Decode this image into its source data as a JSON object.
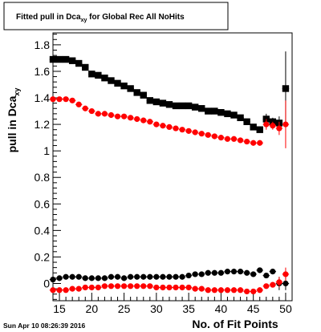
{
  "chart_data": {
    "type": "scatter",
    "title": {
      "main": "Fitted pull in Dca",
      "sub": "xy",
      "rest": " for Global Rec All NoHits"
    },
    "ylabel": {
      "main": "pull in Dca",
      "sub": "xy"
    },
    "xlabel": "No. of Fit Points",
    "timestamp": "Sun Apr 10 08:26:39 2016",
    "xlim": [
      14,
      51
    ],
    "ylim": [
      -0.13,
      1.89
    ],
    "xticks": [
      15,
      20,
      25,
      30,
      35,
      40,
      45,
      50
    ],
    "yticks": [
      0,
      0.2,
      0.4,
      0.6,
      0.8,
      1,
      1.2,
      1.4,
      1.6,
      1.8
    ],
    "ytick_labels": [
      "0",
      "0.2",
      "0.4",
      "0.6",
      "0.8",
      "1",
      "1.2",
      "1.4",
      "1.6",
      "1.8"
    ],
    "grid": false,
    "series": [
      {
        "color": "#000000",
        "marker": "square",
        "x": [
          14,
          15,
          16,
          17,
          18,
          19,
          20,
          21,
          22,
          23,
          24,
          25,
          26,
          27,
          28,
          29,
          30,
          31,
          32,
          33,
          34,
          35,
          36,
          37,
          38,
          39,
          40,
          41,
          42,
          43,
          44,
          45,
          46,
          47,
          48,
          49,
          50
        ],
        "y": [
          1.69,
          1.69,
          1.69,
          1.68,
          1.66,
          1.63,
          1.58,
          1.57,
          1.55,
          1.53,
          1.51,
          1.49,
          1.47,
          1.44,
          1.42,
          1.38,
          1.37,
          1.36,
          1.35,
          1.34,
          1.34,
          1.34,
          1.33,
          1.32,
          1.3,
          1.3,
          1.29,
          1.28,
          1.27,
          1.25,
          1.22,
          1.18,
          1.16,
          1.24,
          1.22,
          1.21,
          1.47
        ],
        "err": [
          0.01,
          0.01,
          0.01,
          0.01,
          0.01,
          0.01,
          0.01,
          0.01,
          0.01,
          0.01,
          0.01,
          0.01,
          0.01,
          0.01,
          0.01,
          0.01,
          0.01,
          0.01,
          0.01,
          0.01,
          0.01,
          0.01,
          0.01,
          0.01,
          0.01,
          0.01,
          0.01,
          0.01,
          0.01,
          0.01,
          0.01,
          0.02,
          0.02,
          0.04,
          0.03,
          0.05,
          0.28
        ]
      },
      {
        "color": "#ff0000",
        "marker": "circle",
        "x": [
          14,
          15,
          16,
          17,
          18,
          19,
          20,
          21,
          22,
          23,
          24,
          25,
          26,
          27,
          28,
          29,
          30,
          31,
          32,
          33,
          34,
          35,
          36,
          37,
          38,
          39,
          40,
          41,
          42,
          43,
          44,
          45,
          46,
          47,
          48,
          49,
          50
        ],
        "y": [
          1.39,
          1.39,
          1.39,
          1.38,
          1.35,
          1.32,
          1.3,
          1.28,
          1.28,
          1.27,
          1.26,
          1.26,
          1.25,
          1.24,
          1.23,
          1.22,
          1.2,
          1.19,
          1.18,
          1.17,
          1.16,
          1.15,
          1.14,
          1.13,
          1.12,
          1.11,
          1.1,
          1.09,
          1.09,
          1.08,
          1.07,
          1.06,
          1.06,
          1.2,
          1.19,
          1.17,
          1.2
        ],
        "err": [
          0.01,
          0.01,
          0.01,
          0.01,
          0.01,
          0.01,
          0.01,
          0.01,
          0.01,
          0.01,
          0.01,
          0.01,
          0.01,
          0.01,
          0.01,
          0.01,
          0.01,
          0.01,
          0.01,
          0.01,
          0.01,
          0.01,
          0.01,
          0.01,
          0.01,
          0.01,
          0.01,
          0.01,
          0.01,
          0.01,
          0.01,
          0.02,
          0.02,
          0.04,
          0.03,
          0.05,
          0.18
        ]
      },
      {
        "color": "#000000",
        "marker": "circle",
        "x": [
          14,
          15,
          16,
          17,
          18,
          19,
          20,
          21,
          22,
          23,
          24,
          25,
          26,
          27,
          28,
          29,
          30,
          31,
          32,
          33,
          34,
          35,
          36,
          37,
          38,
          39,
          40,
          41,
          42,
          43,
          44,
          45,
          46,
          47,
          48,
          49,
          50
        ],
        "y": [
          0.03,
          0.04,
          0.05,
          0.05,
          0.05,
          0.04,
          0.04,
          0.04,
          0.04,
          0.05,
          0.05,
          0.04,
          0.05,
          0.05,
          0.05,
          0.05,
          0.05,
          0.05,
          0.05,
          0.05,
          0.05,
          0.06,
          0.07,
          0.07,
          0.08,
          0.08,
          0.08,
          0.09,
          0.09,
          0.09,
          0.08,
          0.07,
          0.1,
          0.06,
          0.09,
          0.0,
          0.0
        ],
        "err": [
          0.01,
          0.01,
          0.01,
          0.01,
          0.01,
          0.01,
          0.01,
          0.01,
          0.01,
          0.01,
          0.01,
          0.01,
          0.01,
          0.01,
          0.01,
          0.01,
          0.01,
          0.01,
          0.01,
          0.01,
          0.01,
          0.01,
          0.01,
          0.01,
          0.01,
          0.01,
          0.01,
          0.01,
          0.01,
          0.01,
          0.01,
          0.01,
          0.02,
          0.02,
          0.02,
          0.05,
          0.05
        ]
      },
      {
        "color": "#ff0000",
        "marker": "circle",
        "x": [
          14,
          15,
          16,
          17,
          18,
          19,
          20,
          21,
          22,
          23,
          24,
          25,
          26,
          27,
          28,
          29,
          30,
          31,
          32,
          33,
          34,
          35,
          36,
          37,
          38,
          39,
          40,
          41,
          42,
          43,
          44,
          45,
          46,
          47,
          48,
          49,
          50
        ],
        "y": [
          -0.05,
          -0.05,
          -0.05,
          -0.04,
          -0.04,
          -0.03,
          -0.03,
          -0.03,
          -0.02,
          -0.02,
          -0.02,
          -0.02,
          -0.02,
          -0.02,
          -0.02,
          -0.02,
          -0.03,
          -0.03,
          -0.03,
          -0.03,
          -0.03,
          -0.03,
          -0.04,
          -0.04,
          -0.05,
          -0.05,
          -0.05,
          -0.05,
          -0.05,
          -0.05,
          -0.06,
          -0.06,
          -0.05,
          -0.02,
          -0.01,
          0.01,
          0.07
        ],
        "err": [
          0.01,
          0.01,
          0.01,
          0.01,
          0.01,
          0.01,
          0.01,
          0.01,
          0.01,
          0.01,
          0.01,
          0.01,
          0.01,
          0.01,
          0.01,
          0.01,
          0.01,
          0.01,
          0.01,
          0.01,
          0.01,
          0.01,
          0.01,
          0.01,
          0.01,
          0.01,
          0.01,
          0.01,
          0.01,
          0.01,
          0.01,
          0.01,
          0.02,
          0.02,
          0.02,
          0.04,
          0.05
        ]
      }
    ]
  }
}
